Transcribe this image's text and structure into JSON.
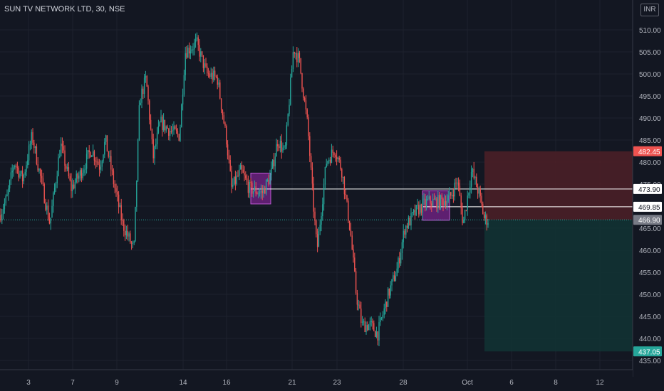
{
  "title": "SUN TV NETWORK LTD, 30, NSE",
  "currency": "INR",
  "colors": {
    "background": "#131722",
    "up": "#26a69a",
    "down": "#ef5350",
    "grid": "#1e222d",
    "axis_text": "#b2b5be",
    "zone": "#9c27b0",
    "stop_zone": "#4a1f27",
    "target_zone": "#123233",
    "current_line": "#26a69a"
  },
  "chart_data": {
    "type": "candlestick",
    "title": "SUN TV NETWORK LTD, 30, NSE",
    "ylim": [
      432.5,
      513
    ],
    "yticks": [
      435,
      440,
      445,
      450,
      455,
      460,
      465,
      470,
      475,
      480,
      485,
      490,
      495,
      500,
      505,
      510
    ],
    "ytick_labels": [
      "435.00",
      "440.00",
      "445.00",
      "450.00",
      "455.00",
      "460.00",
      "465.00",
      "470.00",
      "475.00",
      "480.00",
      "485.00",
      "490.00",
      "495.00",
      "500.00",
      "505.00",
      "510.00"
    ],
    "xaxis": [
      "3",
      "7",
      "9",
      "14",
      "16",
      "21",
      "23",
      "28",
      "Oct",
      "6",
      "8",
      "12"
    ],
    "close_path": [
      {
        "x": 0,
        "y": 468
      },
      {
        "x": 10,
        "y": 472
      },
      {
        "x": 20,
        "y": 480
      },
      {
        "x": 32,
        "y": 476
      },
      {
        "x": 45,
        "y": 486
      },
      {
        "x": 55,
        "y": 478
      },
      {
        "x": 70,
        "y": 466
      },
      {
        "x": 85,
        "y": 484
      },
      {
        "x": 100,
        "y": 474
      },
      {
        "x": 115,
        "y": 478
      },
      {
        "x": 128,
        "y": 483
      },
      {
        "x": 140,
        "y": 479
      },
      {
        "x": 148,
        "y": 485
      },
      {
        "x": 160,
        "y": 475
      },
      {
        "x": 172,
        "y": 466
      },
      {
        "x": 188,
        "y": 460
      },
      {
        "x": 196,
        "y": 494
      },
      {
        "x": 205,
        "y": 499
      },
      {
        "x": 215,
        "y": 481
      },
      {
        "x": 225,
        "y": 489
      },
      {
        "x": 240,
        "y": 487
      },
      {
        "x": 252,
        "y": 486
      },
      {
        "x": 260,
        "y": 505
      },
      {
        "x": 276,
        "y": 507
      },
      {
        "x": 290,
        "y": 500
      },
      {
        "x": 305,
        "y": 499
      },
      {
        "x": 318,
        "y": 485
      },
      {
        "x": 325,
        "y": 474
      },
      {
        "x": 338,
        "y": 478
      },
      {
        "x": 350,
        "y": 474
      },
      {
        "x": 368,
        "y": 473
      },
      {
        "x": 380,
        "y": 477
      },
      {
        "x": 390,
        "y": 485
      },
      {
        "x": 400,
        "y": 482
      },
      {
        "x": 412,
        "y": 506
      },
      {
        "x": 420,
        "y": 503
      },
      {
        "x": 432,
        "y": 488
      },
      {
        "x": 440,
        "y": 470
      },
      {
        "x": 445,
        "y": 460
      },
      {
        "x": 458,
        "y": 480
      },
      {
        "x": 470,
        "y": 483
      },
      {
        "x": 480,
        "y": 478
      },
      {
        "x": 492,
        "y": 464
      },
      {
        "x": 500,
        "y": 450
      },
      {
        "x": 508,
        "y": 443
      },
      {
        "x": 520,
        "y": 443
      },
      {
        "x": 530,
        "y": 441
      },
      {
        "x": 545,
        "y": 450
      },
      {
        "x": 558,
        "y": 456
      },
      {
        "x": 568,
        "y": 465
      },
      {
        "x": 585,
        "y": 469
      },
      {
        "x": 600,
        "y": 471
      },
      {
        "x": 618,
        "y": 471
      },
      {
        "x": 632,
        "y": 472
      },
      {
        "x": 642,
        "y": 476
      },
      {
        "x": 650,
        "y": 466
      },
      {
        "x": 662,
        "y": 478
      },
      {
        "x": 672,
        "y": 473
      },
      {
        "x": 680,
        "y": 467
      },
      {
        "x": 686,
        "y": 466.9
      }
    ],
    "price_labels": [
      {
        "value": 482.45,
        "text": "482.45",
        "color": "#ef5350"
      },
      {
        "value": 473.9,
        "text": "473.90",
        "color": "#ffffff"
      },
      {
        "value": 469.85,
        "text": "469.85",
        "color": "#ffffff"
      },
      {
        "value": 466.9,
        "text": "466.90",
        "color": "#787b86"
      },
      {
        "value": 437.05,
        "text": "437.05",
        "color": "#26a69a"
      }
    ],
    "horizontal_lines": [
      473.9,
      469.85
    ],
    "current_price": 466.9,
    "zones": [
      {
        "from": 470.5,
        "to": 477.5
      },
      {
        "from": 466.8,
        "to": 473.5
      }
    ],
    "risk_reward": {
      "entry": 466.9,
      "stop": 482.45,
      "target": 437.05
    }
  }
}
